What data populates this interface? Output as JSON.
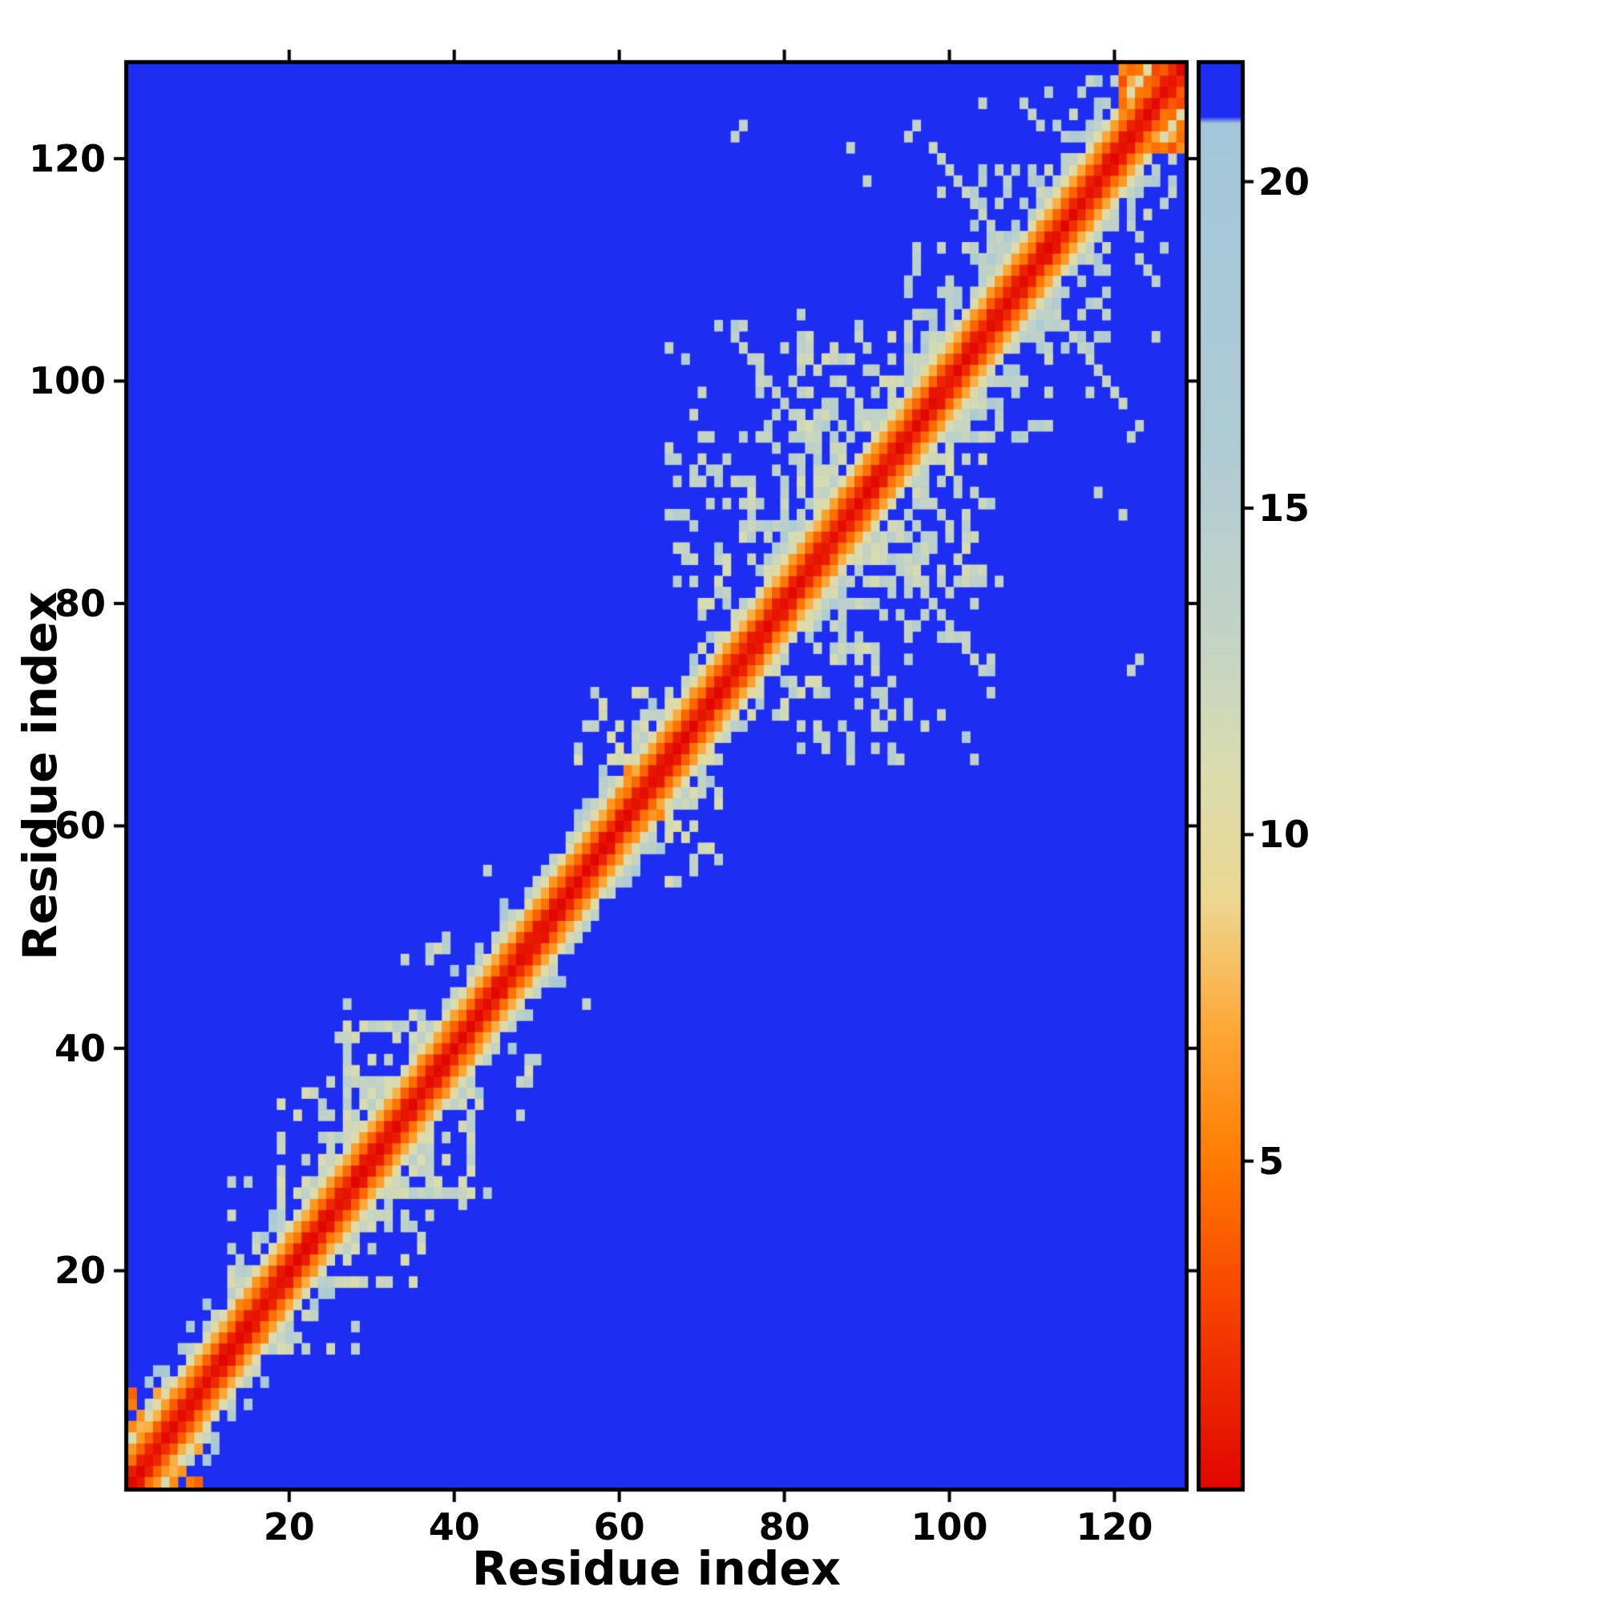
{
  "chart_data": {
    "type": "heatmap",
    "xlabel": "Residue index",
    "ylabel": "Residue index",
    "n_residues": 128,
    "x_ticks": [
      20,
      40,
      60,
      80,
      100,
      120
    ],
    "y_ticks": [
      20,
      40,
      60,
      80,
      100,
      120
    ],
    "colorbar_ticks": [
      5,
      10,
      15,
      20
    ],
    "value_range": [
      0,
      21.8
    ],
    "background_value": 21.8,
    "background_color": "#1d2df2",
    "diagonal_color": "#e10600",
    "seed": 1337,
    "colormap": [
      {
        "v": 0.0,
        "c": "#e10600"
      },
      {
        "v": 2.6,
        "c": "#f53d00"
      },
      {
        "v": 5.0,
        "c": "#ff7b00"
      },
      {
        "v": 7.0,
        "c": "#ffa735"
      },
      {
        "v": 9.0,
        "c": "#ecd791"
      },
      {
        "v": 11.0,
        "c": "#d9dcae"
      },
      {
        "v": 13.0,
        "c": "#c3d3c5"
      },
      {
        "v": 16.0,
        "c": "#aecbd4"
      },
      {
        "v": 20.9,
        "c": "#a3c6da"
      },
      {
        "v": 21.0,
        "c": "#1d2df2"
      },
      {
        "v": 21.8,
        "c": "#1d2df2"
      }
    ],
    "band_profile": [
      0.3,
      1.3,
      4.3,
      6.8,
      10.8
    ],
    "band_fade": [
      {
        "d": 5,
        "v": 13.5,
        "p": 0.55
      },
      {
        "d": 6,
        "v": 16.0,
        "p": 0.3
      },
      {
        "d": 7,
        "v": 18.0,
        "p": 0.12
      }
    ],
    "clusters": [
      {
        "i": [
          1,
          6
        ],
        "j": [
          2,
          9
        ],
        "p": 0.55,
        "v": [
          3,
          8
        ]
      },
      {
        "i": [
          13,
          22
        ],
        "j": [
          16,
          28
        ],
        "p": 0.26,
        "v": [
          11,
          15
        ]
      },
      {
        "i": [
          19,
          30
        ],
        "j": [
          23,
          37
        ],
        "p": 0.24,
        "v": [
          11,
          15
        ]
      },
      {
        "i": [
          27,
          36
        ],
        "j": [
          32,
          44
        ],
        "p": 0.26,
        "v": [
          11,
          15
        ]
      },
      {
        "i": [
          37,
          45
        ],
        "j": [
          40,
          50
        ],
        "p": 0.2,
        "v": [
          11,
          15
        ]
      },
      {
        "i": [
          55,
          66
        ],
        "j": [
          58,
          72
        ],
        "p": 0.28,
        "v": [
          10.5,
          14.5
        ]
      },
      {
        "i": [
          66,
          104
        ],
        "j": [
          68,
          106
        ],
        "p": 0.1,
        "v": [
          12,
          16
        ]
      },
      {
        "i": [
          70,
          90
        ],
        "j": [
          72,
          96
        ],
        "p": 0.22,
        "v": [
          11,
          15
        ]
      },
      {
        "i": [
          82,
          100
        ],
        "j": [
          84,
          104
        ],
        "p": 0.22,
        "v": [
          11,
          15
        ]
      },
      {
        "i": [
          95,
          106
        ],
        "j": [
          98,
          112
        ],
        "p": 0.22,
        "v": [
          12,
          16
        ]
      },
      {
        "i": [
          103,
          114
        ],
        "j": [
          106,
          119
        ],
        "p": 0.24,
        "v": [
          12,
          16
        ]
      },
      {
        "i": [
          112,
          124
        ],
        "j": [
          114,
          127
        ],
        "p": 0.2,
        "v": [
          12,
          16
        ]
      },
      {
        "i": [
          121,
          128
        ],
        "j": [
          122,
          128
        ],
        "p": 0.5,
        "v": [
          3,
          8
        ]
      }
    ],
    "hot_spots": [
      [
        14,
        17,
        5.5
      ],
      [
        60,
        63,
        6.0
      ],
      [
        61,
        65,
        5.5
      ],
      [
        63,
        66,
        6.5
      ],
      [
        65,
        68,
        6.5
      ],
      [
        66,
        69,
        7.0
      ]
    ],
    "antidiagonal_streaks": [
      {
        "i0": 74,
        "j0": 104,
        "len": 11,
        "v": 13
      },
      {
        "i0": 109,
        "j0": 125,
        "len": 11,
        "v": 13
      },
      {
        "i0": 113,
        "j0": 106,
        "len": 9,
        "v": 13
      },
      {
        "i0": 87,
        "j0": 100,
        "len": 6,
        "v": 13
      }
    ],
    "contact_dots": [
      [
        74,
        122
      ],
      [
        88,
        121
      ],
      [
        95,
        122
      ],
      [
        99,
        117
      ],
      [
        70,
        95
      ],
      [
        66,
        88
      ],
      [
        58,
        70
      ],
      [
        44,
        56
      ],
      [
        34,
        48
      ],
      [
        26,
        41
      ],
      [
        96,
        123
      ],
      [
        101,
        118
      ],
      [
        104,
        125
      ],
      [
        96,
        112
      ],
      [
        123,
        75
      ],
      [
        120,
        99
      ],
      [
        118,
        90
      ],
      [
        125,
        104
      ]
    ]
  }
}
